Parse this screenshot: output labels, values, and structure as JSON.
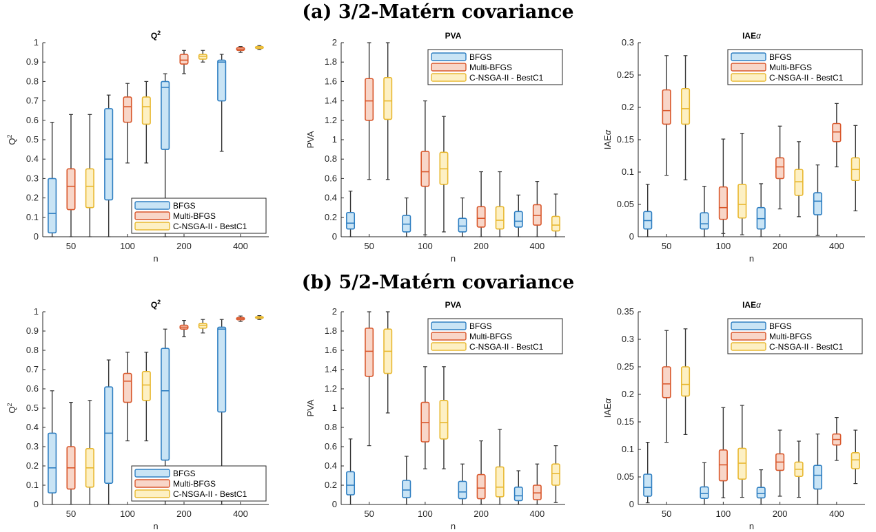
{
  "figure": {
    "section_titles": [
      "(a) 3/2-Matérn covariance",
      "(b) 5/2-Matérn covariance"
    ],
    "colors": {
      "BFGS": {
        "edge": "#2f7fc2",
        "fill": "#c9e4f5"
      },
      "Multi-BFGS": {
        "edge": "#d9572b",
        "fill": "#f8d6c8"
      },
      "C-NSGA-II - BestC1": {
        "edge": "#e8b830",
        "fill": "#fdf0c4"
      },
      "whisker": "#333333"
    }
  },
  "chart_data": [
    {
      "type": "box",
      "section": "a",
      "title": "Q²",
      "xlabel": "n",
      "ylabel": "Q²",
      "ylim": [
        0,
        1
      ],
      "yticks": [
        0,
        0.1,
        0.2,
        0.3,
        0.4,
        0.5,
        0.6,
        0.7,
        0.8,
        0.9,
        1
      ],
      "ytick_labels": [
        "0",
        "0.1",
        "0.2",
        "0.3",
        "0.4",
        "0.5",
        "0.6",
        "0.7",
        "0.8",
        "0.9",
        "1"
      ],
      "categories": [
        "50",
        "100",
        "200",
        "400"
      ],
      "legend": {
        "position": "bottom-right",
        "entries": [
          "BFGS",
          "Multi-BFGS",
          "C-NSGA-II - BestC1"
        ]
      },
      "series": [
        {
          "name": "BFGS",
          "boxes": [
            [
              0.0,
              0.02,
              0.12,
              0.3,
              0.59
            ],
            [
              0.0,
              0.19,
              0.4,
              0.66,
              0.73
            ],
            [
              0.0,
              0.45,
              0.77,
              0.8,
              0.84
            ],
            [
              0.44,
              0.7,
              0.9,
              0.91,
              0.94
            ]
          ]
        },
        {
          "name": "Multi-BFGS",
          "boxes": [
            [
              0.0,
              0.14,
              0.26,
              0.35,
              0.63
            ],
            [
              0.38,
              0.59,
              0.67,
              0.72,
              0.79
            ],
            [
              0.84,
              0.89,
              0.91,
              0.94,
              0.96
            ],
            [
              0.95,
              0.96,
              0.967,
              0.975,
              0.98
            ]
          ]
        },
        {
          "name": "C-NSGA-II - BestC1",
          "boxes": [
            [
              0.0,
              0.15,
              0.26,
              0.35,
              0.63
            ],
            [
              0.38,
              0.58,
              0.67,
              0.72,
              0.8
            ],
            [
              0.9,
              0.915,
              0.93,
              0.94,
              0.96
            ],
            [
              0.965,
              0.97,
              0.977,
              0.98,
              0.985
            ]
          ]
        }
      ]
    },
    {
      "type": "box",
      "section": "a",
      "title": "PVA",
      "xlabel": "n",
      "ylabel": "PVA",
      "ylim": [
        0,
        2
      ],
      "yticks": [
        0,
        0.2,
        0.4,
        0.6,
        0.8,
        1,
        1.2,
        1.4,
        1.6,
        1.8,
        2
      ],
      "ytick_labels": [
        "0",
        "0.2",
        "0.4",
        "0.6",
        "0.8",
        "1",
        "1.2",
        "1.4",
        "1.6",
        "1.8",
        "2"
      ],
      "categories": [
        "50",
        "100",
        "200",
        "400"
      ],
      "legend": {
        "position": "top-right",
        "entries": [
          "BFGS",
          "Multi-BFGS",
          "C-NSGA-II - BestC1"
        ]
      },
      "series": [
        {
          "name": "BFGS",
          "boxes": [
            [
              0.0,
              0.08,
              0.14,
              0.25,
              0.47
            ],
            [
              0.0,
              0.05,
              0.13,
              0.22,
              0.4
            ],
            [
              0.0,
              0.05,
              0.11,
              0.19,
              0.4
            ],
            [
              0.0,
              0.1,
              0.16,
              0.26,
              0.43
            ]
          ]
        },
        {
          "name": "Multi-BFGS",
          "boxes": [
            [
              0.59,
              1.2,
              1.4,
              1.63,
              2.0
            ],
            [
              0.02,
              0.52,
              0.67,
              0.88,
              1.4
            ],
            [
              0.0,
              0.1,
              0.19,
              0.31,
              0.67
            ],
            [
              0.0,
              0.12,
              0.22,
              0.33,
              0.57
            ]
          ]
        },
        {
          "name": "C-NSGA-II - BestC1",
          "boxes": [
            [
              0.59,
              1.21,
              1.4,
              1.64,
              2.0
            ],
            [
              0.05,
              0.54,
              0.7,
              0.87,
              1.24
            ],
            [
              0.0,
              0.08,
              0.17,
              0.31,
              0.67
            ],
            [
              0.0,
              0.06,
              0.12,
              0.21,
              0.44
            ]
          ]
        }
      ]
    },
    {
      "type": "box",
      "section": "a",
      "title": "IAEα",
      "xlabel": "n",
      "ylabel": "IAEα",
      "ylim": [
        0,
        0.3
      ],
      "yticks": [
        0,
        0.05,
        0.1,
        0.15,
        0.2,
        0.25,
        0.3
      ],
      "ytick_labels": [
        "0",
        "0.05",
        "0.1",
        "0.15",
        "0.2",
        "0.25",
        "0.3"
      ],
      "categories": [
        "50",
        "100",
        "200",
        "400"
      ],
      "legend": {
        "position": "top-right",
        "entries": [
          "BFGS",
          "Multi-BFGS",
          "C-NSGA-II - BestC1"
        ]
      },
      "series": [
        {
          "name": "BFGS",
          "boxes": [
            [
              0.0,
              0.012,
              0.025,
              0.039,
              0.081
            ],
            [
              0.0,
              0.012,
              0.02,
              0.037,
              0.078
            ],
            [
              0.0,
              0.012,
              0.028,
              0.045,
              0.082
            ],
            [
              0.002,
              0.034,
              0.055,
              0.068,
              0.111
            ]
          ]
        },
        {
          "name": "Multi-BFGS",
          "boxes": [
            [
              0.095,
              0.174,
              0.195,
              0.227,
              0.28
            ],
            [
              0.005,
              0.027,
              0.045,
              0.077,
              0.151
            ],
            [
              0.043,
              0.09,
              0.108,
              0.122,
              0.171
            ],
            [
              0.108,
              0.147,
              0.162,
              0.175,
              0.206
            ]
          ]
        },
        {
          "name": "C-NSGA-II - BestC1",
          "boxes": [
            [
              0.088,
              0.174,
              0.198,
              0.229,
              0.28
            ],
            [
              0.003,
              0.029,
              0.05,
              0.081,
              0.16
            ],
            [
              0.031,
              0.064,
              0.085,
              0.104,
              0.147
            ],
            [
              0.04,
              0.087,
              0.104,
              0.122,
              0.172
            ]
          ]
        }
      ]
    },
    {
      "type": "box",
      "section": "b",
      "title": "Q²",
      "xlabel": "n",
      "ylabel": "Q²",
      "ylim": [
        0,
        1
      ],
      "yticks": [
        0,
        0.1,
        0.2,
        0.3,
        0.4,
        0.5,
        0.6,
        0.7,
        0.8,
        0.9,
        1
      ],
      "ytick_labels": [
        "0",
        "0.1",
        "0.2",
        "0.3",
        "0.4",
        "0.5",
        "0.6",
        "0.7",
        "0.8",
        "0.9",
        "1"
      ],
      "categories": [
        "50",
        "100",
        "200",
        "400"
      ],
      "legend": {
        "position": "bottom-right",
        "entries": [
          "BFGS",
          "Multi-BFGS",
          "C-NSGA-II - BestC1"
        ]
      },
      "series": [
        {
          "name": "BFGS",
          "boxes": [
            [
              0.0,
              0.06,
              0.19,
              0.37,
              0.59
            ],
            [
              0.0,
              0.11,
              0.37,
              0.61,
              0.75
            ],
            [
              0.0,
              0.23,
              0.59,
              0.81,
              0.91
            ],
            [
              0.0,
              0.48,
              0.91,
              0.92,
              0.96
            ]
          ]
        },
        {
          "name": "Multi-BFGS",
          "boxes": [
            [
              0.0,
              0.08,
              0.19,
              0.3,
              0.53
            ],
            [
              0.33,
              0.53,
              0.64,
              0.68,
              0.79
            ],
            [
              0.87,
              0.91,
              0.92,
              0.93,
              0.955
            ],
            [
              0.95,
              0.958,
              0.965,
              0.97,
              0.978
            ]
          ]
        },
        {
          "name": "C-NSGA-II - BestC1",
          "boxes": [
            [
              0.0,
              0.09,
              0.19,
              0.29,
              0.54
            ],
            [
              0.33,
              0.54,
              0.62,
              0.69,
              0.79
            ],
            [
              0.89,
              0.915,
              0.93,
              0.94,
              0.96
            ],
            [
              0.96,
              0.966,
              0.971,
              0.975,
              0.98
            ]
          ]
        }
      ]
    },
    {
      "type": "box",
      "section": "b",
      "title": "PVA",
      "xlabel": "n",
      "ylabel": "PVA",
      "ylim": [
        0,
        2
      ],
      "yticks": [
        0,
        0.2,
        0.4,
        0.6,
        0.8,
        1,
        1.2,
        1.4,
        1.6,
        1.8,
        2
      ],
      "ytick_labels": [
        "0",
        "0.2",
        "0.4",
        "0.6",
        "0.8",
        "1",
        "1.2",
        "1.4",
        "1.6",
        "1.8",
        "2"
      ],
      "categories": [
        "50",
        "100",
        "200",
        "400"
      ],
      "legend": {
        "position": "top-right",
        "entries": [
          "BFGS",
          "Multi-BFGS",
          "C-NSGA-II - BestC1"
        ]
      },
      "series": [
        {
          "name": "BFGS",
          "boxes": [
            [
              0.0,
              0.1,
              0.2,
              0.34,
              0.68
            ],
            [
              0.0,
              0.07,
              0.15,
              0.25,
              0.5
            ],
            [
              0.0,
              0.06,
              0.13,
              0.24,
              0.42
            ],
            [
              0.0,
              0.04,
              0.09,
              0.18,
              0.35
            ]
          ]
        },
        {
          "name": "Multi-BFGS",
          "boxes": [
            [
              0.61,
              1.33,
              1.59,
              1.83,
              2.0
            ],
            [
              0.37,
              0.65,
              0.85,
              1.06,
              1.43
            ],
            [
              0.0,
              0.06,
              0.17,
              0.31,
              0.66
            ],
            [
              0.0,
              0.05,
              0.12,
              0.2,
              0.42
            ]
          ]
        },
        {
          "name": "C-NSGA-II - BestC1",
          "boxes": [
            [
              0.95,
              1.36,
              1.59,
              1.82,
              2.0
            ],
            [
              0.37,
              0.68,
              0.85,
              1.08,
              1.43
            ],
            [
              0.0,
              0.08,
              0.18,
              0.39,
              0.78
            ],
            [
              0.02,
              0.2,
              0.32,
              0.42,
              0.61
            ]
          ]
        }
      ]
    },
    {
      "type": "box",
      "section": "b",
      "title": "IAEα",
      "xlabel": "n",
      "ylabel": "IAEα",
      "ylim": [
        0,
        0.35
      ],
      "yticks": [
        0,
        0.05,
        0.1,
        0.15,
        0.2,
        0.25,
        0.3,
        0.35
      ],
      "ytick_labels": [
        "0",
        "0.05",
        "0.1",
        "0.15",
        "0.2",
        "0.25",
        "0.3",
        "0.35"
      ],
      "categories": [
        "50",
        "100",
        "200",
        "400"
      ],
      "legend": {
        "position": "top-right",
        "entries": [
          "BFGS",
          "Multi-BFGS",
          "C-NSGA-II - BestC1"
        ]
      },
      "series": [
        {
          "name": "BFGS",
          "boxes": [
            [
              0.003,
              0.015,
              0.031,
              0.055,
              0.113
            ],
            [
              0.0,
              0.011,
              0.02,
              0.032,
              0.076
            ],
            [
              0.0,
              0.012,
              0.02,
              0.031,
              0.063
            ],
            [
              0.0,
              0.028,
              0.053,
              0.071,
              0.128
            ]
          ]
        },
        {
          "name": "Multi-BFGS",
          "boxes": [
            [
              0.113,
              0.194,
              0.219,
              0.25,
              0.316
            ],
            [
              0.012,
              0.043,
              0.072,
              0.099,
              0.176
            ],
            [
              0.015,
              0.062,
              0.077,
              0.092,
              0.135
            ],
            [
              0.08,
              0.108,
              0.118,
              0.128,
              0.158
            ]
          ]
        },
        {
          "name": "C-NSGA-II - BestC1",
          "boxes": [
            [
              0.127,
              0.197,
              0.218,
              0.25,
              0.319
            ],
            [
              0.013,
              0.046,
              0.075,
              0.102,
              0.18
            ],
            [
              0.013,
              0.051,
              0.064,
              0.077,
              0.115
            ],
            [
              0.038,
              0.065,
              0.081,
              0.094,
              0.135
            ]
          ]
        }
      ]
    }
  ]
}
